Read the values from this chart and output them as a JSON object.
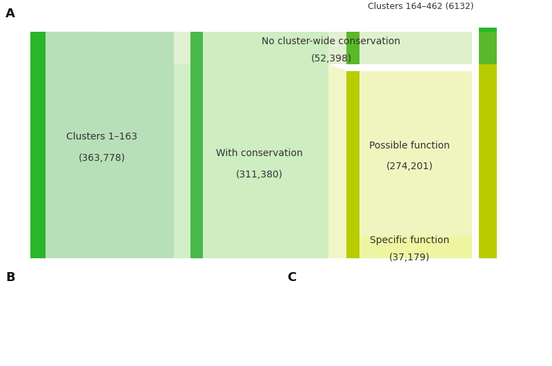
{
  "background_color": "#ffffff",
  "label_A": "A",
  "label_B": "B",
  "label_C": "C",
  "clusters_164_text": "Clusters 164–462 (6132)",
  "col1_text_line1": "Clusters 1–163",
  "col1_text_line2": "(363,778)",
  "col1_bg": "#b8e0b8",
  "col1_bar_color": "#2ab52a",
  "col2_text_line1": "With conservation",
  "col2_text_line2": "(311,380)",
  "col2_bg": "#ceedc0",
  "col2_bar_color": "#4ab84a",
  "no_conserv_text_line1": "No cluster-wide conservation",
  "no_conserv_text_line2": "(52,398)",
  "no_conserv_bg": "#dff0cc",
  "possible_text_line1": "Possible function",
  "possible_text_line2": "(274,201)",
  "possible_bg": "#f0f5c0",
  "specific_text_line1": "Specific function",
  "specific_text_line2": "(37,179)",
  "specific_bg": "#edf5a0",
  "col3_bar_color_green": "#5ab82a",
  "col3_bar_color_yellow": "#b8cc00",
  "right_bar_green_color": "#2ab52a",
  "right_bar_yellow_color": "#b8cc00",
  "flow_top_color": "#d8eec8",
  "flow_mid_color": "#ceedc0",
  "flow_right_color": "#e8f5c8",
  "values": {
    "clusters_164": 6132,
    "no_conserv": 52398,
    "with_conserv": 311380,
    "possible": 274201,
    "specific": 37179,
    "total_col1": 363778
  },
  "font_size": 10,
  "font_color": "#333333"
}
